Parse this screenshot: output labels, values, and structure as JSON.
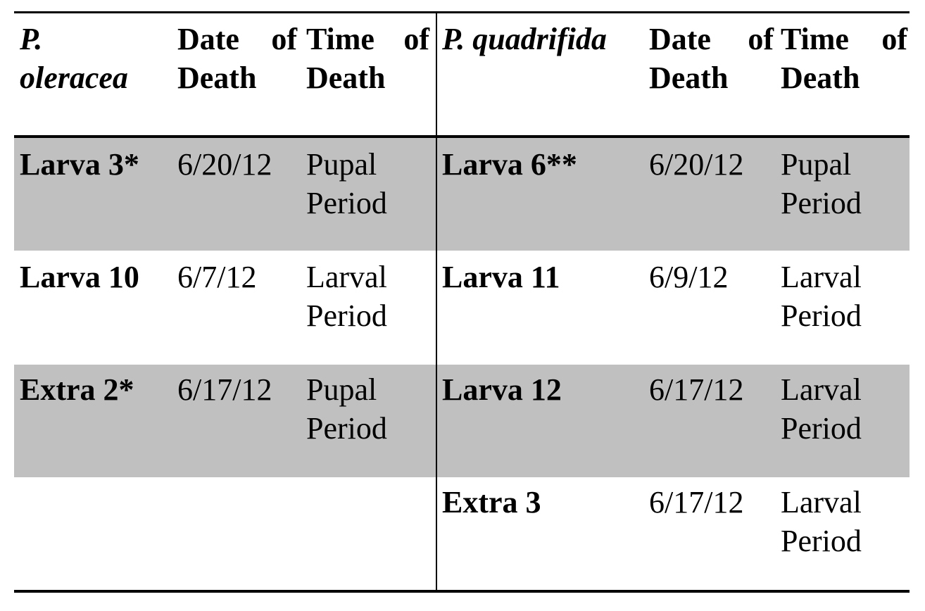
{
  "table": {
    "left_group": {
      "species_line1": "P.",
      "species_line2": "oleracea",
      "date_header_line1_word1": "Date",
      "date_header_line1_word2": "of",
      "date_header_line2": "Death",
      "time_header_line1_word1": "Time",
      "time_header_line1_word2": "of",
      "time_header_line2": "Death",
      "rows": [
        {
          "label": "Larva 3*",
          "date": "6/20/12",
          "time_line1": "Pupal",
          "time_line2": "Period"
        },
        {
          "label": "Larva 10",
          "date": "6/7/12",
          "time_line1": "Larval",
          "time_line2": "Period"
        },
        {
          "label": "Extra 2*",
          "date": "6/17/12",
          "time_line1": "Pupal",
          "time_line2": "Period"
        }
      ]
    },
    "right_group": {
      "species": "P. quadrifida",
      "date_header_line1_word1": "Date",
      "date_header_line1_word2": "of",
      "date_header_line2": "Death",
      "time_header_line1_word1": "Time",
      "time_header_line1_word2": "of",
      "time_header_line2": "Death",
      "rows": [
        {
          "label": "Larva 6**",
          "date": "6/20/12",
          "time_line1": "Pupal",
          "time_line2": "Period"
        },
        {
          "label": "Larva 11",
          "date": "6/9/12",
          "time_line1": "Larval",
          "time_line2": "Period"
        },
        {
          "label": "Larva 12",
          "date": "6/17/12",
          "time_line1": "Larval",
          "time_line2": "Period"
        },
        {
          "label": "Extra 3",
          "date": "6/17/12",
          "time_line1": "Larval",
          "time_line2": "Period"
        }
      ]
    },
    "colors": {
      "row_shade": "#c0c0c0",
      "rule": "#000000"
    }
  }
}
